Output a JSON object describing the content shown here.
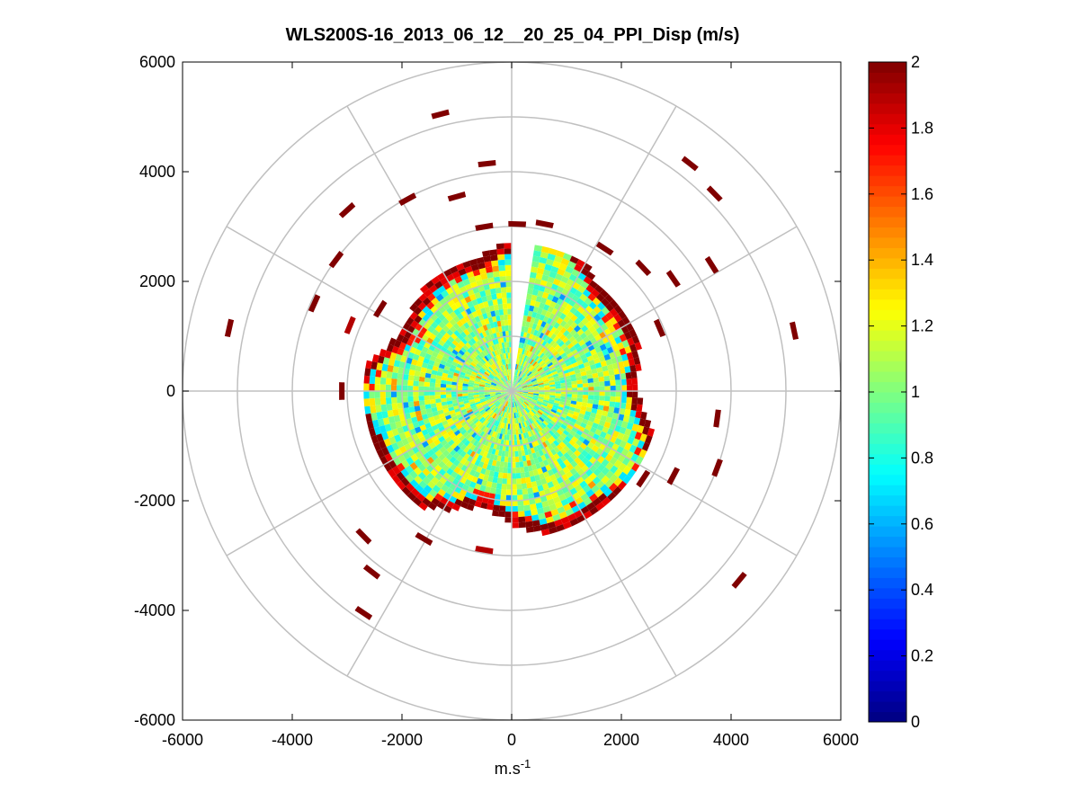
{
  "chart_data": {
    "type": "heatmap",
    "subtype": "polar-ppi",
    "title": "WLS200S-16_2013_06_12__20_25_04_PPI_Disp (m/s)",
    "xlabel": {
      "base": "m.s",
      "sup": "-1"
    },
    "ylabel": "",
    "xlim": [
      -6000,
      6000
    ],
    "ylim": [
      -6000,
      6000
    ],
    "xticks": [
      "-6000",
      "-4000",
      "-2000",
      "0",
      "2000",
      "4000",
      "6000"
    ],
    "yticks": [
      "6000",
      "4000",
      "2000",
      "0",
      "-2000",
      "-4000",
      "-6000"
    ],
    "colorbar": {
      "colormap": "jet",
      "range": [
        0,
        2
      ],
      "ticks": [
        "0",
        "0.2",
        "0.4",
        "0.6",
        "0.8",
        "1",
        "1.2",
        "1.4",
        "1.6",
        "1.8",
        "2"
      ]
    },
    "polar_grid": {
      "ring_step": 1000,
      "max_radius": 6000,
      "spoke_angle_step_deg": 30,
      "color": "#c0c0c0"
    },
    "data_description_ranges": {
      "dense_region_radius": [
        0,
        2700
      ],
      "dense_region_typical_value": [
        0.8,
        1.3
      ],
      "edge_value": 2,
      "missing_sector_azimuth_deg": [
        0,
        6
      ]
    },
    "sparse_cells": [
      {
        "x": -1300,
        "y": 5050,
        "v": 2
      },
      {
        "x": -450,
        "y": 4150,
        "v": 2
      },
      {
        "x": -3000,
        "y": 3300,
        "v": 2
      },
      {
        "x": -1000,
        "y": 3550,
        "v": 2
      },
      {
        "x": -1900,
        "y": 3500,
        "v": 2
      },
      {
        "x": -5150,
        "y": 1150,
        "v": 2
      },
      {
        "x": -3600,
        "y": 1600,
        "v": 2
      },
      {
        "x": -2950,
        "y": 1200,
        "v": 1.9
      },
      {
        "x": -3200,
        "y": 2400,
        "v": 2
      },
      {
        "x": 3250,
        "y": 4150,
        "v": 2
      },
      {
        "x": 3700,
        "y": 3600,
        "v": 2
      },
      {
        "x": 3650,
        "y": 2300,
        "v": 2
      },
      {
        "x": 5150,
        "y": 1100,
        "v": 2
      },
      {
        "x": 2400,
        "y": 2250,
        "v": 2
      },
      {
        "x": 2950,
        "y": 2050,
        "v": 2
      },
      {
        "x": 3750,
        "y": -500,
        "v": 2
      },
      {
        "x": 3750,
        "y": -1400,
        "v": 2
      },
      {
        "x": 4150,
        "y": -3450,
        "v": 2
      },
      {
        "x": 2950,
        "y": -1550,
        "v": 2
      },
      {
        "x": -2700,
        "y": -2650,
        "v": 2
      },
      {
        "x": -2550,
        "y": -3300,
        "v": 2
      },
      {
        "x": -2700,
        "y": -4050,
        "v": 2
      },
      {
        "x": -500,
        "y": -2900,
        "v": 1.9
      },
      {
        "x": -1600,
        "y": -2700,
        "v": 2
      },
      {
        "x": 2400,
        "y": -1600,
        "v": 2
      },
      {
        "x": 100,
        "y": 3050,
        "v": 2
      },
      {
        "x": -500,
        "y": 3000,
        "v": 2
      },
      {
        "x": 600,
        "y": 3050,
        "v": 2
      },
      {
        "x": 1700,
        "y": 2600,
        "v": 2
      },
      {
        "x": 2700,
        "y": 1150,
        "v": 2
      },
      {
        "x": -3100,
        "y": 0,
        "v": 2
      },
      {
        "x": -2400,
        "y": 1500,
        "v": 2
      }
    ]
  }
}
